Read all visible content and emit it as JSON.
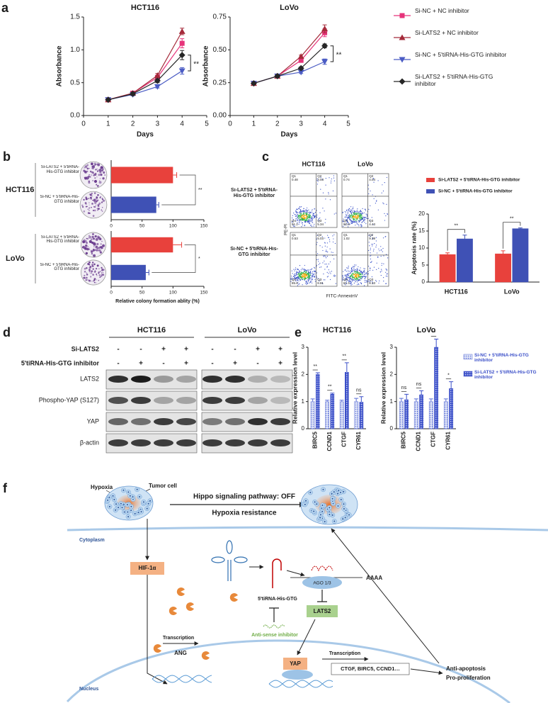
{
  "panel_labels": [
    "a",
    "b",
    "c",
    "d",
    "e",
    "f"
  ],
  "chart_data": [
    {
      "type": "line",
      "title": "HCT116",
      "x_label": "Days",
      "y_label": "Absorbance",
      "x": [
        1,
        2,
        3,
        4
      ],
      "xlim": [
        0,
        5
      ],
      "xticks": [
        0,
        1,
        2,
        3,
        4,
        5
      ],
      "ylim": [
        0,
        1.5
      ],
      "yticks": [
        {
          "value": 0,
          "label": "0.0"
        },
        0.5,
        {
          "value": 1,
          "label": "1.0"
        },
        1.5
      ],
      "series": [
        {
          "name": "Si-NC + NC inhibitor",
          "color": "#e6337a",
          "marker": "square",
          "values": [
            0.24,
            0.34,
            0.58,
            1.1
          ],
          "errors": [
            0.01,
            0.02,
            0.03,
            0.07
          ]
        },
        {
          "name": "Si-LATS2 + NC inhibitor",
          "color": "#a52a3a",
          "marker": "triangle",
          "values": [
            0.24,
            0.34,
            0.61,
            1.28
          ],
          "errors": [
            0.01,
            0.02,
            0.03,
            0.05
          ]
        },
        {
          "name": "Si-NC + 5'tiRNA-His-GTG inhibitor",
          "color": "#4b5cc4",
          "marker": "triangle-down",
          "values": [
            0.24,
            0.32,
            0.44,
            0.68
          ],
          "errors": [
            0.01,
            0.02,
            0.02,
            0.05
          ]
        },
        {
          "name": "Si-LATS2 + 5'tiRNA-His-GTG inhibitor",
          "color": "#262626",
          "marker": "diamond",
          "values": [
            0.24,
            0.33,
            0.53,
            0.92
          ],
          "errors": [
            0.01,
            0.02,
            0.03,
            0.07
          ]
        }
      ],
      "annotation": "**"
    },
    {
      "type": "line",
      "title": "LoVo",
      "x_label": "Days",
      "y_label": "Absorbance",
      "x": [
        1,
        2,
        3,
        4
      ],
      "xlim": [
        0,
        5
      ],
      "xticks": [
        0,
        1,
        2,
        3,
        4,
        5
      ],
      "ylim": [
        0,
        0.75
      ],
      "yticks": [
        {
          "value": 0,
          "label": "0.00"
        },
        0.25,
        {
          "value": 0.5,
          "label": "0.50"
        },
        0.75
      ],
      "series": [
        {
          "name": "Si-NC + NC inhibitor",
          "color": "#e6337a",
          "marker": "square",
          "values": [
            0.245,
            0.3,
            0.42,
            0.63
          ],
          "errors": [
            0.005,
            0.01,
            0.015,
            0.03
          ]
        },
        {
          "name": "Si-LATS2 + NC inhibitor",
          "color": "#a52a3a",
          "marker": "triangle",
          "values": [
            0.245,
            0.3,
            0.45,
            0.66
          ],
          "errors": [
            0.005,
            0.01,
            0.01,
            0.03
          ]
        },
        {
          "name": "Si-NC + 5'tiRNA-His-GTG inhibitor",
          "color": "#4b5cc4",
          "marker": "triangle-down",
          "values": [
            0.245,
            0.3,
            0.33,
            0.41
          ],
          "errors": [
            0.005,
            0.01,
            0.01,
            0.02
          ]
        },
        {
          "name": "Si-LATS2 + 5'tiRNA-His-GTG inhibitor",
          "color": "#262626",
          "marker": "diamond",
          "values": [
            0.245,
            0.3,
            0.36,
            0.53
          ],
          "errors": [
            0.005,
            0.01,
            0.01,
            0.015
          ]
        }
      ],
      "annotation": "**"
    },
    {
      "type": "hbar",
      "group": "HCT116",
      "categories": [
        "Si-LATS2 + 5'tiRNA-His-GTG inhibitor",
        "Si-NC + 5'tiRNA-His-GTG inhibitor"
      ],
      "values": [
        100,
        73
      ],
      "errors": [
        6,
        4
      ],
      "colors": [
        "#e8413c",
        "#3f51b5"
      ],
      "xlim": [
        0,
        150
      ],
      "xticks": [
        0,
        50,
        100,
        150
      ],
      "annotation": "**"
    },
    {
      "type": "hbar",
      "group": "LoVo",
      "x_label": "Relative colony formation ablity (%)",
      "categories": [
        "Si-LATS2 + 5'tiRNA-His-GTG inhibitor",
        "Si-NC + 5'tiRNA-His-GTG inhibitor"
      ],
      "values": [
        100,
        56
      ],
      "errors": [
        14,
        5
      ],
      "colors": [
        "#e8413c",
        "#3f51b5"
      ],
      "xlim": [
        0,
        150
      ],
      "xticks": [
        0,
        50,
        100,
        150
      ],
      "annotation": "*"
    },
    {
      "type": "bar",
      "y_label": "Apoptosis rate (%)",
      "categories": [
        "HCT116",
        "LoVo"
      ],
      "series": [
        {
          "name": "Si-LATS2 + 5'tiRNA-His-GTG inhibitor",
          "color": "#e8413c",
          "values": [
            8.1,
            8.3
          ],
          "errors": [
            0.5,
            0.9
          ]
        },
        {
          "name": "Si-NC + 5'tiRNA-His-GTG inhibitor",
          "color": "#3f51b5",
          "values": [
            12.7,
            15.7
          ],
          "errors": [
            1.1,
            0.2
          ]
        }
      ],
      "ylim": [
        0,
        20
      ],
      "yticks": [
        0,
        5,
        10,
        15,
        20
      ],
      "annotations": [
        "**",
        "**"
      ]
    },
    {
      "type": "bar",
      "title": "HCT116",
      "y_label": "Relative expression level",
      "categories": [
        "BIRC5",
        "CCND1",
        "CTGF",
        "CYR61"
      ],
      "series": [
        {
          "name": "Si-NC + 5'tiRNA-His-GTG inhibitor",
          "color": "#5b6fd6",
          "pattern": "dots",
          "values": [
            1,
            1,
            1,
            1
          ],
          "errors": [
            0.1,
            0.05,
            0.05,
            0.12
          ]
        },
        {
          "name": "Si-LATS2 + 5'tiRNA-His-GTG inhibitor",
          "color": "#3b4fc8",
          "pattern": "checks",
          "values": [
            2.0,
            1.27,
            2.08,
            0.98
          ],
          "errors": [
            0.06,
            0.04,
            0.35,
            0.2
          ]
        }
      ],
      "ylim": [
        0,
        3
      ],
      "yticks": [
        0,
        1,
        2,
        3
      ],
      "annotations": [
        "**",
        "**",
        "**",
        "ns"
      ]
    },
    {
      "type": "bar",
      "title": "LoVo",
      "y_label": "Relative expression level",
      "categories": [
        "BIRC5",
        "CCND1",
        "CTGF",
        "CYR61"
      ],
      "series": [
        {
          "name": "Si-NC + 5'tiRNA-His-GTG inhibitor",
          "color": "#5b6fd6",
          "pattern": "dots",
          "values": [
            1,
            1,
            1,
            1
          ],
          "errors": [
            0.12,
            0.1,
            0.1,
            0.1
          ]
        },
        {
          "name": "Si-LATS2 + 5'tiRNA-His-GTG inhibitor",
          "color": "#3b4fc8",
          "pattern": "checks",
          "values": [
            1.07,
            1.25,
            3.0,
            1.48
          ],
          "errors": [
            0.2,
            0.15,
            0.3,
            0.25
          ]
        }
      ],
      "ylim": [
        0,
        3
      ],
      "yticks": [
        0,
        1,
        2,
        3
      ],
      "annotations": [
        "ns",
        "ns",
        "**",
        "*"
      ]
    }
  ],
  "flow": {
    "columns": [
      "HCT116",
      "LoVo"
    ],
    "rows": [
      "Si-LATS2 + 5'tiRNA-His-GTG inhibitor",
      "Si-NC + 5'tiRNA-His-GTG inhibitor"
    ],
    "y_label": "PE-PI",
    "x_label": "FITC-AnnexinV",
    "quadrant_names": [
      "Q1",
      "Q2",
      "Q3",
      "Q4"
    ],
    "plots": [
      [
        [
          0.48,
          3.03,
          5.34,
          91.2
        ],
        [
          0.74,
          4.04,
          4.43,
          90.8
        ]
      ],
      [
        [
          0.53,
          5.03,
          8.81,
          85.6
        ],
        [
          1.02,
          9.39,
          8.33,
          81.3
        ]
      ]
    ]
  },
  "blot": {
    "columns": [
      "HCT116",
      "LoVo"
    ],
    "treatments": [
      {
        "name": "Si-LATS2",
        "signs": [
          "-",
          "-",
          "+",
          "+",
          "-",
          "-",
          "+",
          "+"
        ]
      },
      {
        "name": "5'tiRNA-His-GTG inhibitor",
        "signs": [
          "-",
          "+",
          "-",
          "+",
          "-",
          "+",
          "-",
          "+"
        ]
      }
    ],
    "proteins": [
      "LATS2",
      "Phospho-YAP (S127)",
      "YAP",
      "β-actin"
    ]
  },
  "diagram": {
    "hypoxia": "Hypoxia",
    "tumor_cell": "Tumor cell",
    "pathway": "Hippo signaling pathway: OFF",
    "resistance": "Hypoxia resistance",
    "cytoplasm": "Cytoplasm",
    "hif": "HIF-1α",
    "tirna": "5'tiRNA-His-GTG",
    "ago": "AGO 1/3",
    "polya": "AAAA",
    "lats2": "LATS2",
    "inhibitor": "Anti-sense inhibitor",
    "nucleus": "Nucleus",
    "transcription_1": "Transcription",
    "ang": "ANG",
    "yap": "YAP",
    "transcription_2": "Transcription",
    "targets": "CTGF, BIRC5, CCND1…",
    "anti_apoptosis": "Anti-apoptosis",
    "pro_proliferation": "Pro-proliferation"
  }
}
